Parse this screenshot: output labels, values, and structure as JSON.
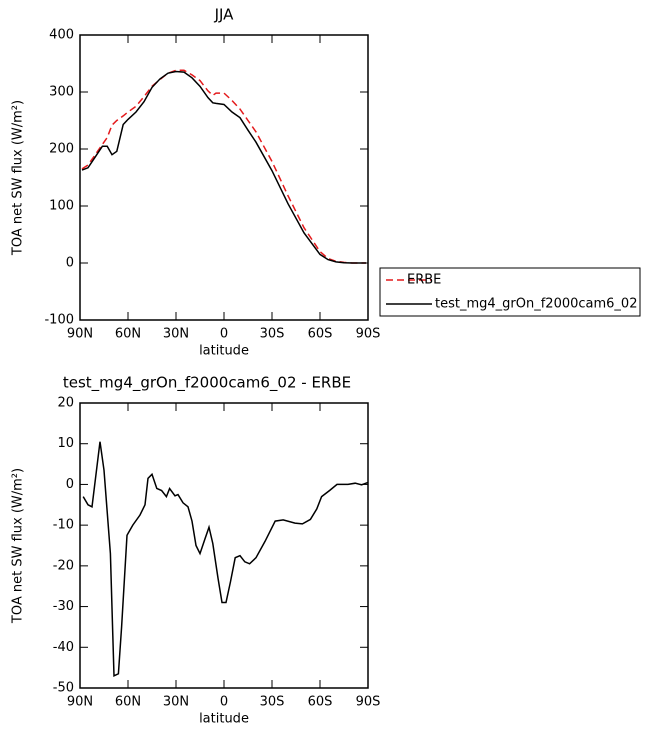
{
  "chart_data": [
    {
      "type": "line",
      "title": "JJA",
      "xlabel": "latitude",
      "ylabel": "TOA net SW flux (W/m²)",
      "x": [
        88.75,
        85,
        80,
        76,
        73,
        70,
        67,
        63,
        60,
        55,
        50,
        45,
        40,
        35,
        30,
        25,
        20,
        15,
        10,
        7,
        5,
        0,
        -5,
        -10,
        -15,
        -20,
        -30,
        -40,
        -50,
        -60,
        -65,
        -70,
        -75,
        -80,
        -88.75
      ],
      "series": [
        {
          "name": "ERBE",
          "color": "#e41a1c",
          "dashed": true,
          "values": [
            165,
            172,
            192,
            208,
            220,
            242,
            250,
            258,
            265,
            275,
            292,
            310,
            322,
            333,
            338,
            338,
            330,
            320,
            302,
            294,
            298,
            298,
            285,
            270,
            250,
            230,
            178,
            118,
            62,
            20,
            8,
            3,
            1,
            0,
            0
          ]
        },
        {
          "name": "test_mg4_grOn_f2000cam6_02",
          "color": "#000000",
          "dashed": false,
          "values": [
            163,
            167,
            188,
            205,
            205,
            190,
            196,
            243,
            252,
            265,
            283,
            308,
            323,
            333,
            336,
            335,
            325,
            310,
            290,
            281,
            280,
            278,
            265,
            255,
            233,
            212,
            162,
            104,
            53,
            15,
            6,
            2,
            0.5,
            0,
            0
          ]
        }
      ],
      "xlim": [
        90,
        -90
      ],
      "xticks": [
        {
          "value": 90,
          "label": "90N"
        },
        {
          "value": 60,
          "label": "60N"
        },
        {
          "value": 30,
          "label": "30N"
        },
        0,
        {
          "value": -30,
          "label": "30S"
        },
        {
          "value": -60,
          "label": "60S"
        },
        {
          "value": -90,
          "label": "90S"
        }
      ],
      "ylim": [
        -100,
        400
      ],
      "yticks": [
        -100,
        0,
        100,
        200,
        300,
        400
      ],
      "legend": "right"
    },
    {
      "type": "line",
      "title": "test_mg4_grOn_f2000cam6_02 - ERBE",
      "xlabel": "latitude",
      "ylabel": "TOA net SW flux (W/m²)",
      "x": [
        88,
        85,
        82.5,
        77.5,
        75,
        71,
        68.75,
        66,
        64,
        60.6,
        57,
        52.5,
        49.4,
        47.5,
        45,
        42,
        39,
        36,
        34,
        30.6,
        28.75,
        25.6,
        22.5,
        20,
        17.5,
        15,
        12,
        9.4,
        7,
        3.75,
        1.25,
        -1.25,
        -4,
        -7,
        -10,
        -13,
        -16,
        -20,
        -25.6,
        -32,
        -37,
        -44.4,
        -49,
        -54,
        -58,
        -61,
        -66,
        -70.6,
        -77.5,
        -82,
        -86,
        -90
      ],
      "values": [
        -3,
        -5,
        -5.5,
        10.5,
        3.5,
        -17,
        -47,
        -46.5,
        -35,
        -12.5,
        -10,
        -7.5,
        -5,
        1.5,
        2.5,
        -1,
        -1.5,
        -3,
        -1,
        -2.8,
        -2.5,
        -4.5,
        -5.5,
        -9,
        -15,
        -17,
        -13.5,
        -10.5,
        -14.5,
        -23,
        -29,
        -29,
        -24,
        -18,
        -17.5,
        -19,
        -19.5,
        -18,
        -14,
        -9,
        -8.7,
        -9.5,
        -9.7,
        -8.6,
        -6,
        -3,
        -1.5,
        0,
        0,
        0.3,
        -0.1,
        0.5
      ],
      "color": "#000000",
      "xlim": [
        90,
        -90
      ],
      "xticks": [
        {
          "value": 90,
          "label": "90N"
        },
        {
          "value": 60,
          "label": "60N"
        },
        {
          "value": 30,
          "label": "30N"
        },
        0,
        {
          "value": -30,
          "label": "30S"
        },
        {
          "value": -60,
          "label": "60S"
        },
        {
          "value": -90,
          "label": "90S"
        }
      ],
      "ylim": [
        -50,
        20
      ],
      "yticks": [
        -50,
        -40,
        -30,
        -20,
        -10,
        0,
        10,
        20
      ]
    }
  ]
}
